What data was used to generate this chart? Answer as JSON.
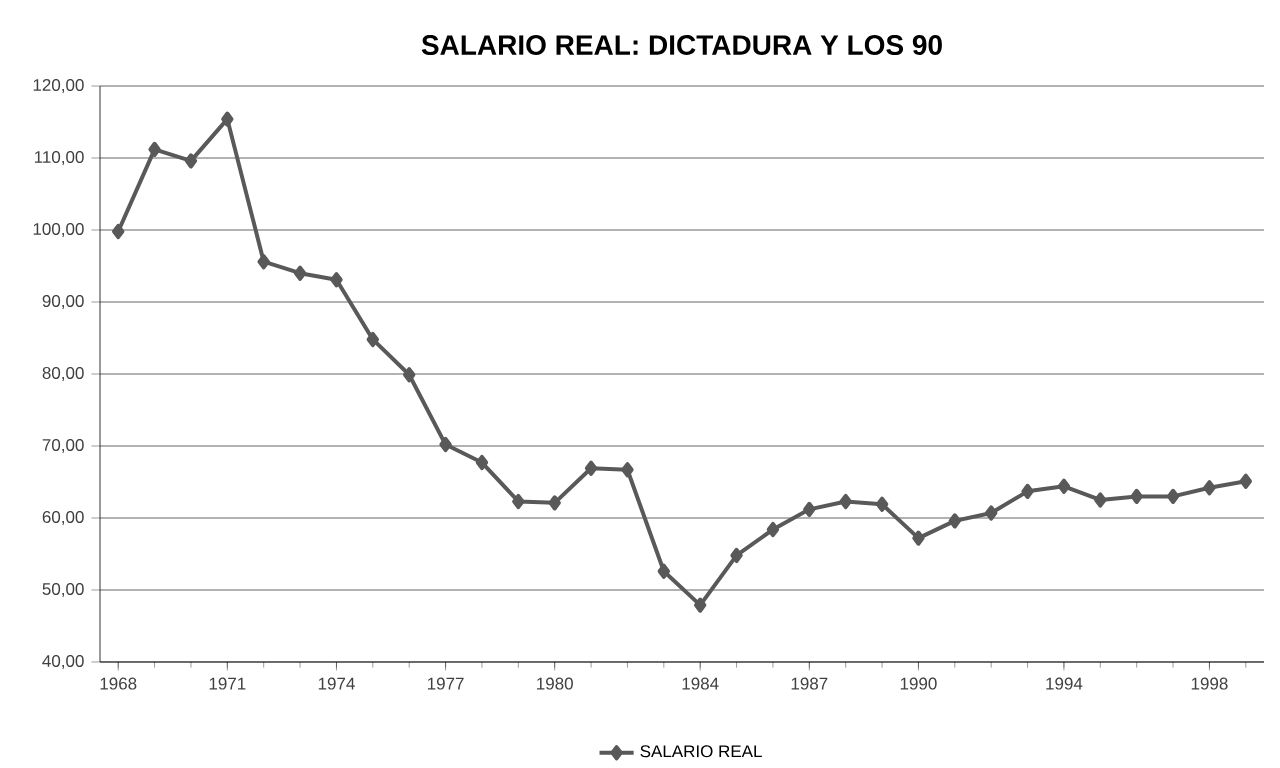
{
  "chart_data": {
    "type": "line",
    "title": "SALARIO REAL: DICTADURA Y LOS 90",
    "categories": [
      "1968",
      null,
      null,
      "1971",
      null,
      null,
      "1974",
      null,
      null,
      "1977",
      null,
      null,
      "1980",
      null,
      null,
      null,
      "1984",
      null,
      null,
      "1987",
      null,
      null,
      "1990",
      null,
      null,
      null,
      "1994",
      null,
      null,
      null,
      "1998",
      null
    ],
    "series": [
      {
        "name": "SALARIO REAL",
        "color": "#595959",
        "values": [
          99.8,
          111.2,
          109.6,
          115.4,
          95.6,
          94.0,
          93.1,
          84.8,
          79.9,
          70.2,
          67.7,
          62.3,
          62.1,
          66.9,
          66.7,
          52.6,
          47.9,
          54.8,
          58.4,
          61.2,
          62.3,
          61.9,
          57.2,
          59.6,
          60.7,
          63.7,
          64.4,
          62.5,
          63.0,
          63.0,
          64.2,
          65.1
        ]
      }
    ],
    "ylim": [
      40,
      120
    ],
    "yticks": [
      {
        "value": 40,
        "label": "40,00"
      },
      {
        "value": 50,
        "label": "50,00"
      },
      {
        "value": 60,
        "label": "60,00"
      },
      {
        "value": 70,
        "label": "70,00"
      },
      {
        "value": 80,
        "label": "80,00"
      },
      {
        "value": 90,
        "label": "90,00"
      },
      {
        "value": 100,
        "label": "100,00"
      },
      {
        "value": 110,
        "label": "110,00"
      },
      {
        "value": 120,
        "label": "120,00"
      }
    ],
    "grid": "y",
    "legend": "bottom",
    "marker": "diamond",
    "line_style": "solid"
  }
}
